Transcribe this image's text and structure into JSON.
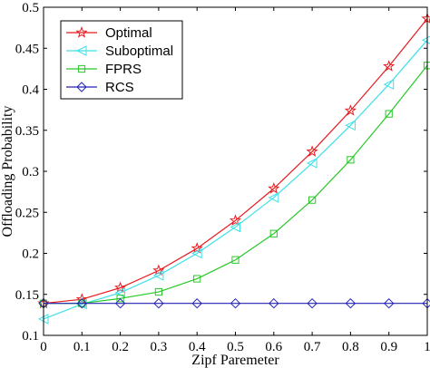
{
  "chart_data": {
    "type": "line",
    "xlabel": "Zipf Paremeter",
    "ylabel": "Offloading Probability",
    "xlim": [
      0,
      1
    ],
    "ylim": [
      0.1,
      0.5
    ],
    "x": [
      0,
      0.1,
      0.2,
      0.3,
      0.4,
      0.5,
      0.6,
      0.7,
      0.8,
      0.9,
      1
    ],
    "xticks": [
      "0",
      "0.1",
      "0.2",
      "0.3",
      "0.4",
      "0.5",
      "0.6",
      "0.7",
      "0.8",
      "0.9",
      "1"
    ],
    "yticks": [
      "0.1",
      "0.15",
      "0.2",
      "0.25",
      "0.3",
      "0.35",
      "0.4",
      "0.45",
      "0.5"
    ],
    "grid": false,
    "legend_position": "top-left",
    "series": [
      {
        "name": "Optimal",
        "color": "#e8191d",
        "marker": "star",
        "values": [
          0.139,
          0.144,
          0.158,
          0.179,
          0.206,
          0.24,
          0.279,
          0.324,
          0.374,
          0.428,
          0.486
        ]
      },
      {
        "name": "Suboptimal",
        "color": "#3fe0e8",
        "marker": "triangle-left",
        "values": [
          0.12,
          0.138,
          0.152,
          0.173,
          0.2,
          0.232,
          0.268,
          0.31,
          0.356,
          0.406,
          0.46
        ]
      },
      {
        "name": "FPRS",
        "color": "#28c828",
        "marker": "square",
        "values": [
          0.139,
          0.139,
          0.145,
          0.153,
          0.169,
          0.192,
          0.224,
          0.265,
          0.314,
          0.37,
          0.429
        ]
      },
      {
        "name": "RCS",
        "color": "#2323b4",
        "marker": "diamond",
        "values": [
          0.139,
          0.139,
          0.139,
          0.139,
          0.139,
          0.139,
          0.139,
          0.139,
          0.139,
          0.139,
          0.139
        ]
      }
    ]
  }
}
